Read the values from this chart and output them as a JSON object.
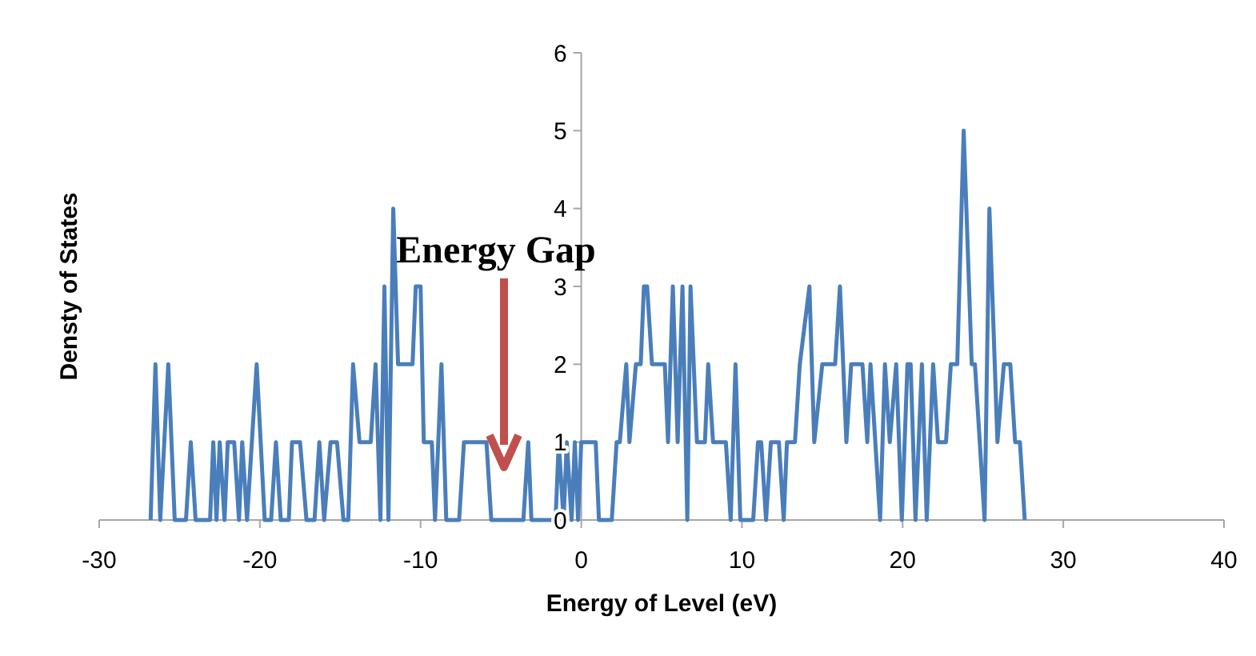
{
  "chart_data": {
    "type": "line",
    "xlabel": "Energy of Level (eV)",
    "ylabel": "Densty of States",
    "xlim": [
      -30,
      40
    ],
    "xticks": [
      -30,
      -20,
      -10,
      0,
      10,
      20,
      30,
      40
    ],
    "ylim": [
      0,
      6
    ],
    "yticks": [
      0,
      1,
      2,
      3,
      4,
      5,
      6
    ],
    "grid": false,
    "marker": "none",
    "line_style": "solid",
    "annotations": [
      "Energy Gap"
    ],
    "series": [
      {
        "color": "#4a7ebb",
        "x": [
          -26.8,
          -26.5,
          -26.2,
          -25.7,
          -25.3,
          -24.6,
          -24.3,
          -24.0,
          -23.1,
          -22.9,
          -22.7,
          -22.5,
          -22.2,
          -22.0,
          -21.6,
          -21.3,
          -21.1,
          -20.8,
          -20.2,
          -19.7,
          -19.3,
          -19.0,
          -18.7,
          -18.2,
          -18.0,
          -17.5,
          -17.1,
          -16.6,
          -16.3,
          -16.0,
          -15.6,
          -15.2,
          -14.8,
          -14.5,
          -14.2,
          -13.8,
          -13.1,
          -12.8,
          -12.5,
          -12.25,
          -12.0,
          -11.7,
          -11.4,
          -10.5,
          -10.3,
          -10.0,
          -9.8,
          -9.3,
          -9.1,
          -8.7,
          -8.4,
          -7.6,
          -7.3,
          -5.9,
          -5.6,
          -3.6,
          -3.3,
          -3.1,
          -1.6,
          -1.4,
          -1.1,
          -0.9,
          -0.6,
          -0.4,
          -0.2,
          0.0,
          0.9,
          1.1,
          1.9,
          2.2,
          2.4,
          2.8,
          3.0,
          3.4,
          3.7,
          3.9,
          4.1,
          4.4,
          5.2,
          5.4,
          5.7,
          6.0,
          6.3,
          6.6,
          6.8,
          7.2,
          7.7,
          7.9,
          8.2,
          9.0,
          9.3,
          9.6,
          9.9,
          10.7,
          11.0,
          11.2,
          11.5,
          11.8,
          12.3,
          12.6,
          12.8,
          13.3,
          13.6,
          14.2,
          14.5,
          15.0,
          15.8,
          16.1,
          16.5,
          16.8,
          17.5,
          17.8,
          18.0,
          18.6,
          18.9,
          19.2,
          19.6,
          19.95,
          20.3,
          20.5,
          20.8,
          21.2,
          21.5,
          21.9,
          22.2,
          22.7,
          23.0,
          23.4,
          23.8,
          24.3,
          24.5,
          25.1,
          25.4,
          25.9,
          26.3,
          26.7,
          27.0,
          27.3,
          27.6
        ],
        "values": [
          0,
          2,
          0,
          2,
          0,
          0,
          1,
          0,
          0,
          1,
          0,
          1,
          0,
          1,
          1,
          0,
          1,
          0,
          2,
          0,
          0,
          1,
          0,
          0,
          1,
          1,
          0,
          0,
          1,
          0,
          1,
          1,
          0,
          0,
          2,
          1,
          1,
          2,
          0,
          3,
          0,
          4,
          2,
          2,
          3,
          3,
          1,
          1,
          0,
          2,
          0,
          0,
          1,
          1,
          0,
          0,
          1,
          0,
          0,
          1,
          0,
          1,
          0,
          1,
          0,
          1,
          1,
          0,
          0,
          1,
          1,
          2,
          1,
          2,
          2,
          3,
          3,
          2,
          2,
          1,
          3,
          1,
          3,
          0,
          3,
          1,
          1,
          2,
          1,
          1,
          0,
          2,
          0,
          0,
          1,
          1,
          0,
          1,
          1,
          0,
          1,
          1,
          2,
          3,
          1,
          2,
          2,
          3,
          1,
          2,
          2,
          1,
          2,
          0,
          2,
          1,
          2,
          0,
          2,
          2,
          0,
          2,
          0,
          2,
          1,
          1,
          2,
          2,
          5,
          2,
          2,
          0,
          4,
          1,
          2,
          2,
          1,
          1,
          0
        ]
      }
    ]
  }
}
